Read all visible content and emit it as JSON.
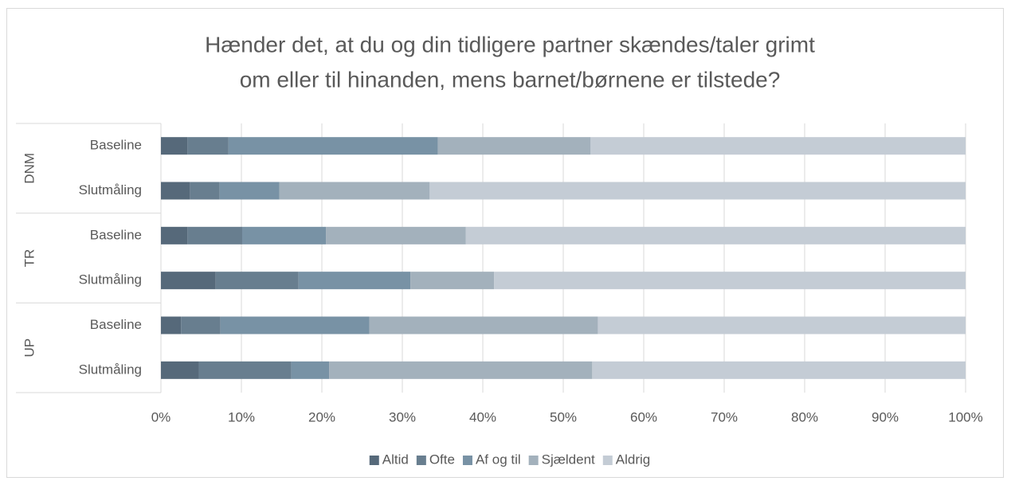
{
  "chart_data": {
    "type": "stacked_barh",
    "title": [
      "Hænder det, at du og din tidligere partner skændes/taler grimt",
      "om eller til hinanden, mens barnet/børnene er tilstede?"
    ],
    "groups": [
      {
        "label": "DNM",
        "categories": [
          "Baseline",
          "Slutmåling"
        ]
      },
      {
        "label": "TR",
        "categories": [
          "Baseline",
          "Slutmåling"
        ]
      },
      {
        "label": "UP",
        "categories": [
          "Baseline",
          "Slutmåling"
        ]
      }
    ],
    "series": [
      {
        "name": "Altid",
        "color": "#56697a",
        "values": [
          3.3,
          3.6,
          3.3,
          6.8,
          2.5,
          4.7
        ]
      },
      {
        "name": "Ofte",
        "color": "#687e8f",
        "values": [
          5.1,
          3.7,
          6.8,
          10.3,
          4.9,
          11.5
        ]
      },
      {
        "name": "Af og til",
        "color": "#7892a5",
        "values": [
          26.0,
          7.4,
          10.4,
          13.9,
          18.5,
          4.7
        ]
      },
      {
        "name": "Sjældent",
        "color": "#a3b1bc",
        "values": [
          19.0,
          18.7,
          17.4,
          10.4,
          28.4,
          32.7
        ]
      },
      {
        "name": "Aldrig",
        "color": "#c4ccd5",
        "values": [
          46.6,
          66.6,
          62.1,
          58.6,
          45.7,
          46.4
        ]
      }
    ],
    "xlim": [
      0,
      100
    ],
    "xticks": [
      {
        "value": 0,
        "label": "0%"
      },
      {
        "value": 10,
        "label": "10%"
      },
      {
        "value": 20,
        "label": "20%"
      },
      {
        "value": 30,
        "label": "30%"
      },
      {
        "value": 40,
        "label": "40%"
      },
      {
        "value": 50,
        "label": "50%"
      },
      {
        "value": 60,
        "label": "60%"
      },
      {
        "value": 70,
        "label": "70%"
      },
      {
        "value": 80,
        "label": "80%"
      },
      {
        "value": 90,
        "label": "90%"
      },
      {
        "value": 100,
        "label": "100%"
      }
    ],
    "grid": true,
    "legend": "bottom"
  }
}
